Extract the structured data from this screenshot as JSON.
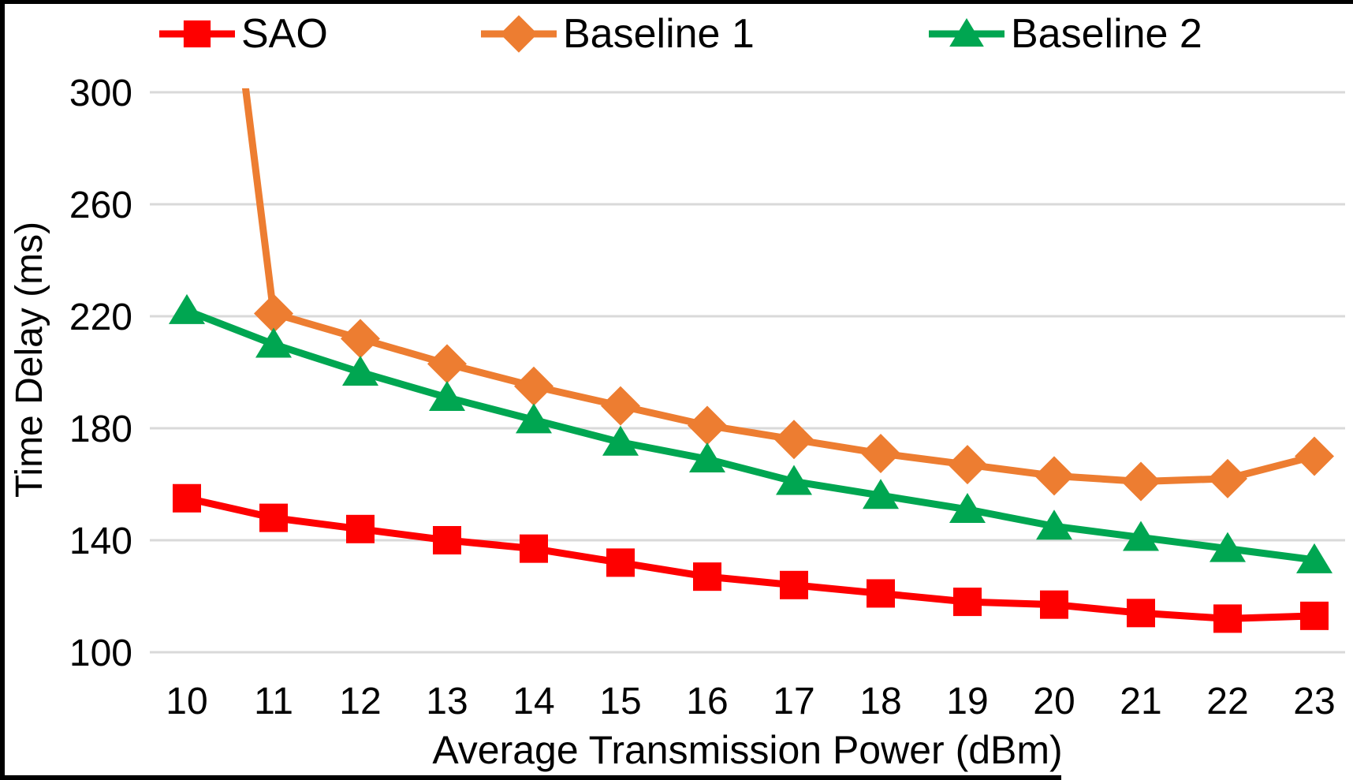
{
  "colors": {
    "sao": "#FE0000",
    "baseline1": "#ED7D31",
    "baseline2": "#00A651",
    "gridline": "#D9D9D9",
    "text": "#000000",
    "border": "#000000"
  },
  "legend": [
    {
      "label": "SAO",
      "marker": "square",
      "color": "#FE0000"
    },
    {
      "label": "Baseline 1",
      "marker": "diamond",
      "color": "#ED7D31"
    },
    {
      "label": "Baseline 2",
      "marker": "triangle",
      "color": "#00A651"
    }
  ],
  "chart_data": {
    "type": "line",
    "title": "",
    "xlabel": "Average Transmission Power (dBm)",
    "ylabel": "Time Delay (ms)",
    "x": [
      10,
      11,
      12,
      13,
      14,
      15,
      16,
      17,
      18,
      19,
      20,
      21,
      22,
      23
    ],
    "series": [
      {
        "name": "SAO",
        "marker": "square",
        "color": "#FE0000",
        "values": [
          155,
          148,
          144,
          140,
          137,
          132,
          127,
          124,
          121,
          118,
          117,
          114,
          112,
          113
        ]
      },
      {
        "name": "Baseline 1",
        "marker": "diamond",
        "color": "#ED7D31",
        "values": [
          470,
          221,
          212,
          203,
          195,
          188,
          181,
          176,
          171,
          167,
          163,
          161,
          162,
          170
        ]
      },
      {
        "name": "Baseline 2",
        "marker": "triangle",
        "color": "#00A651",
        "values": [
          222,
          210,
          200,
          191,
          183,
          175,
          169,
          161,
          156,
          151,
          145,
          141,
          137,
          133
        ]
      }
    ],
    "ylim": [
      100,
      300
    ],
    "yticks": [
      100,
      140,
      180,
      220,
      260,
      300
    ],
    "xticks": [
      10,
      11,
      12,
      13,
      14,
      15,
      16,
      17,
      18,
      19,
      20,
      21,
      22,
      23
    ],
    "grid": true,
    "legend_position": "top",
    "note_clipped": "Baseline 1 value at x=10 exceeds the y-axis maximum and is clipped at 300"
  }
}
